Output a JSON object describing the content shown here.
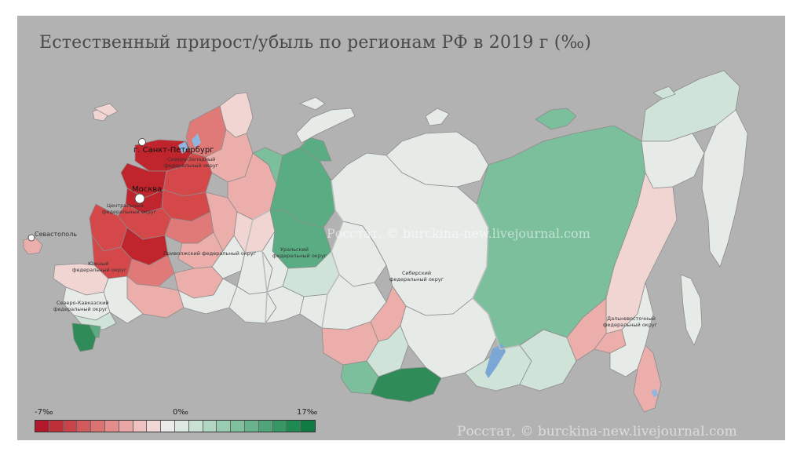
{
  "title": "Естественный прирост/убыль по регионам РФ в 2019 г (‰)",
  "watermark": "Росстат, © burckina-new.livejournal.com",
  "cities": {
    "spb": "г. Санкт-Петербург",
    "moscow": "Москва",
    "sevastopol": "Севастополь"
  },
  "districts": {
    "northwest": [
      "Северо-Западный",
      "федеральный округ"
    ],
    "central": [
      "Центральный",
      "федеральный округ"
    ],
    "volga": [
      "Приволжский федеральный округ"
    ],
    "south": [
      "Южный",
      "федеральный округ"
    ],
    "ncaucasus": [
      "Северо-Кавказский",
      "федеральный округ"
    ],
    "ural": [
      "Уральский",
      "федеральный округ"
    ],
    "siberia": [
      "Сибирский",
      "федеральный округ"
    ],
    "fareast": [
      "Дальневосточный",
      "федеральный округ"
    ]
  },
  "legend": {
    "min_label": "-7‰",
    "mid_label": "0‰",
    "max_label": "17‰",
    "colors": [
      "#b2182b",
      "#be2e38",
      "#c84449",
      "#d25a5c",
      "#dc7373",
      "#e38d8c",
      "#e9a7a6",
      "#efc1c0",
      "#f1d8d6",
      "#ecebea",
      "#dde9e2",
      "#c8e1d3",
      "#b1d7c3",
      "#99ccb1",
      "#81c09f",
      "#68b38c",
      "#4fa579",
      "#369765",
      "#1f8952",
      "#107a43"
    ]
  },
  "region_colors": {
    "deep_red": "#c0242c",
    "red": "#d4484a",
    "mid_red": "#df7a78",
    "light_red": "#ebaeab",
    "pale_red": "#f1d5d3",
    "neutral": "#e6ebe8",
    "pale_green": "#cfe3d8",
    "light_green": "#a9d3bc",
    "green": "#7cbf9c",
    "mid_green": "#5aad82",
    "dark_green": "#2f8c58"
  }
}
